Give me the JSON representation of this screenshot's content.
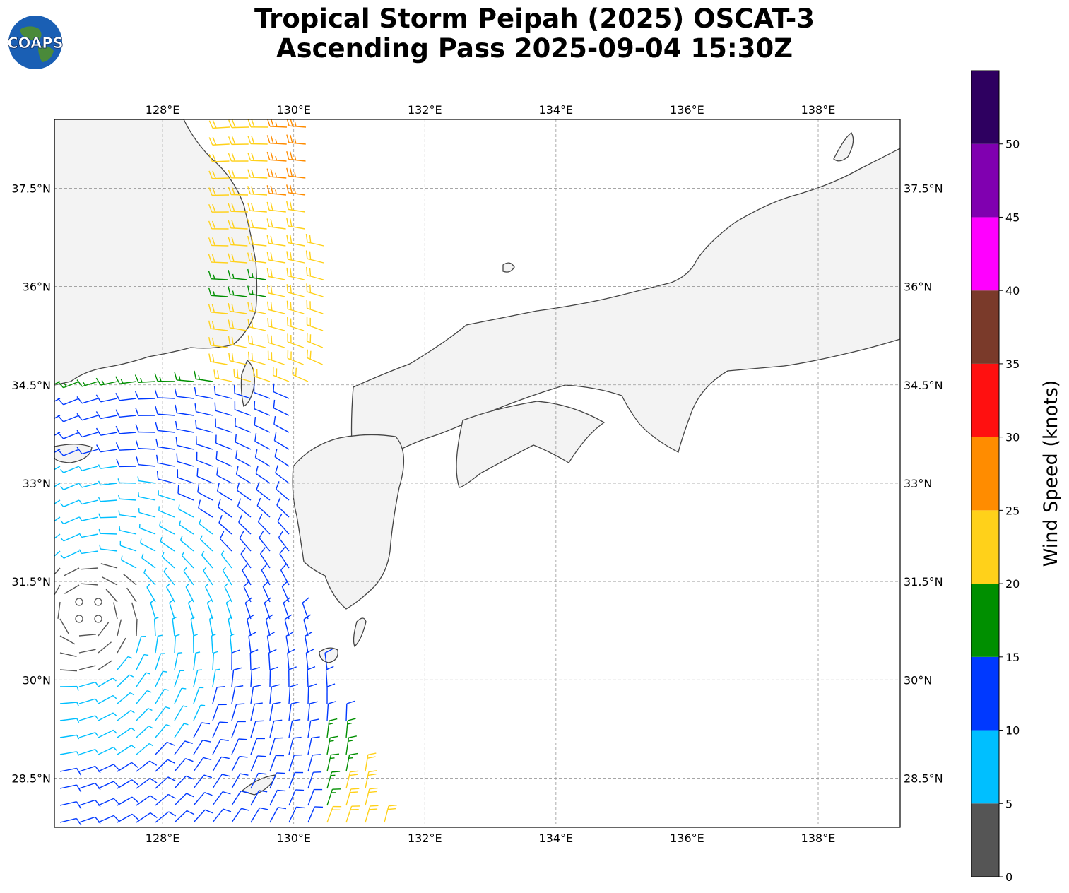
{
  "title": {
    "line1": "Tropical Storm Peipah (2025) OSCAT-3",
    "line2": "Ascending Pass 2025-09-04 15:30Z"
  },
  "logo": {
    "text": "COAPS",
    "icon": "globe-logo-icon"
  },
  "map": {
    "lon_range": [
      126.35,
      139.25
    ],
    "lat_range": [
      27.75,
      38.55
    ],
    "lon_ticks": [
      "128°E",
      "130°E",
      "132°E",
      "134°E",
      "136°E",
      "138°E"
    ],
    "lon_tick_values": [
      128,
      130,
      132,
      134,
      136,
      138
    ],
    "lat_ticks": [
      "37.5°N",
      "36°N",
      "34.5°N",
      "33°N",
      "31.5°N",
      "30°N",
      "28.5°N"
    ],
    "lat_tick_values": [
      37.5,
      36,
      34.5,
      33,
      31.5,
      30,
      28.5
    ],
    "grid": true,
    "land_color": "#f4f4f4",
    "coast_color": "#444444"
  },
  "colorbar": {
    "label": "Wind Speed (knots)",
    "bounds": [
      0,
      5,
      10,
      15,
      20,
      25,
      30,
      35,
      40,
      45,
      50,
      55
    ],
    "tick_labels": [
      "0",
      "5",
      "10",
      "15",
      "20",
      "25",
      "30",
      "35",
      "40",
      "45",
      "50"
    ],
    "colors": [
      "#555555",
      "#00bfff",
      "#0039ff",
      "#008f00",
      "#ffd11a",
      "#ff8c00",
      "#ff1010",
      "#7a3a2a",
      "#ff00ff",
      "#8000b0",
      "#2e0060"
    ]
  }
}
